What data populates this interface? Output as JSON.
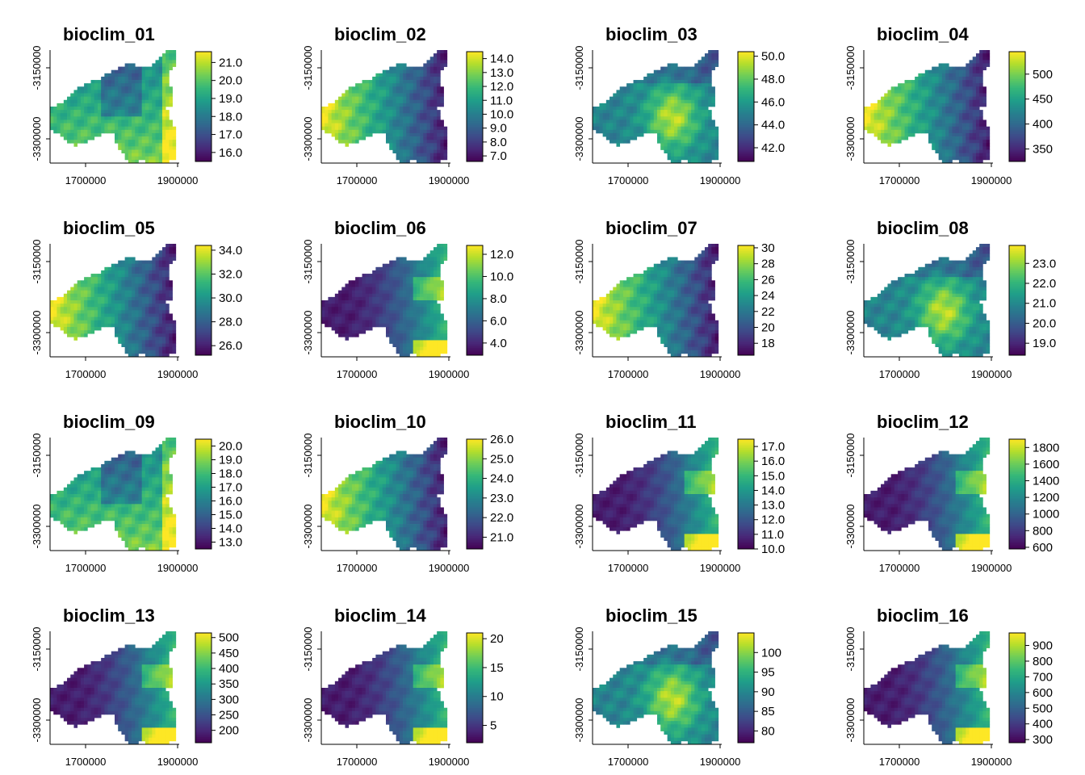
{
  "chart_data": [
    {
      "type": "heatmap",
      "title": "bioclim_01",
      "xticks": [
        "1700000",
        "1900000"
      ],
      "yticks": [
        "-3150000",
        "-3300000"
      ],
      "colorscale": "viridis",
      "legend_ticks": [
        "21.0",
        "20.0",
        "19.0",
        "18.0",
        "17.0",
        "16.0"
      ],
      "legend_range": [
        15.5,
        21.6
      ],
      "pattern": "south_high"
    },
    {
      "type": "heatmap",
      "title": "bioclim_02",
      "xticks": [
        "1700000",
        "1900000"
      ],
      "yticks": [
        "-3150000",
        "-3300000"
      ],
      "colorscale": "viridis",
      "legend_ticks": [
        "14.0",
        "13.0",
        "12.0",
        "11.0",
        "10.0",
        "9.0",
        "8.0",
        "7.0"
      ],
      "legend_range": [
        6.6,
        14.5
      ],
      "pattern": "west_high"
    },
    {
      "type": "heatmap",
      "title": "bioclim_03",
      "xticks": [
        "1700000",
        "1900000"
      ],
      "yticks": [
        "-3150000",
        "-3300000"
      ],
      "colorscale": "viridis",
      "legend_ticks": [
        "50.0",
        "48.0",
        "46.0",
        "44.0",
        "42.0"
      ],
      "legend_range": [
        40.8,
        50.4
      ],
      "pattern": "center_high"
    },
    {
      "type": "heatmap",
      "title": "bioclim_04",
      "xticks": [
        "1700000",
        "1900000"
      ],
      "yticks": [
        "-3150000",
        "-3300000"
      ],
      "colorscale": "viridis",
      "legend_ticks": [
        "500",
        "450",
        "400",
        "350"
      ],
      "legend_range": [
        325,
        545
      ],
      "pattern": "west_high"
    },
    {
      "type": "heatmap",
      "title": "bioclim_05",
      "xticks": [
        "1700000",
        "1900000"
      ],
      "yticks": [
        "-3150000",
        "-3300000"
      ],
      "colorscale": "viridis",
      "legend_ticks": [
        "34.0",
        "32.0",
        "30.0",
        "28.0",
        "26.0"
      ],
      "legend_range": [
        25.2,
        34.4
      ],
      "pattern": "west_high"
    },
    {
      "type": "heatmap",
      "title": "bioclim_06",
      "xticks": [
        "1700000",
        "1900000"
      ],
      "yticks": [
        "-3150000",
        "-3300000"
      ],
      "colorscale": "viridis",
      "legend_ticks": [
        "12.0",
        "10.0",
        "8.0",
        "6.0",
        "4.0"
      ],
      "legend_range": [
        2.9,
        12.8
      ],
      "pattern": "east_high"
    },
    {
      "type": "heatmap",
      "title": "bioclim_07",
      "xticks": [
        "1700000",
        "1900000"
      ],
      "yticks": [
        "-3150000",
        "-3300000"
      ],
      "colorscale": "viridis",
      "legend_ticks": [
        "30",
        "28",
        "26",
        "24",
        "22",
        "20",
        "18"
      ],
      "legend_range": [
        16.5,
        30.3
      ],
      "pattern": "west_high"
    },
    {
      "type": "heatmap",
      "title": "bioclim_08",
      "xticks": [
        "1700000",
        "1900000"
      ],
      "yticks": [
        "-3150000",
        "-3300000"
      ],
      "colorscale": "viridis",
      "legend_ticks": [
        "23.0",
        "22.0",
        "21.0",
        "20.0",
        "19.0"
      ],
      "legend_range": [
        18.4,
        23.9
      ],
      "pattern": "center_high"
    },
    {
      "type": "heatmap",
      "title": "bioclim_09",
      "xticks": [
        "1700000",
        "1900000"
      ],
      "yticks": [
        "-3150000",
        "-3300000"
      ],
      "colorscale": "viridis",
      "legend_ticks": [
        "20.0",
        "19.0",
        "18.0",
        "17.0",
        "16.0",
        "15.0",
        "14.0",
        "13.0"
      ],
      "legend_range": [
        12.5,
        20.5
      ],
      "pattern": "south_high"
    },
    {
      "type": "heatmap",
      "title": "bioclim_10",
      "xticks": [
        "1700000",
        "1900000"
      ],
      "yticks": [
        "-3150000",
        "-3300000"
      ],
      "colorscale": "viridis",
      "legend_ticks": [
        "26.0",
        "25.0",
        "24.0",
        "23.0",
        "22.0",
        "21.0"
      ],
      "legend_range": [
        20.4,
        26.0
      ],
      "pattern": "west_high"
    },
    {
      "type": "heatmap",
      "title": "bioclim_11",
      "xticks": [
        "1700000",
        "1900000"
      ],
      "yticks": [
        "-3150000",
        "-3300000"
      ],
      "colorscale": "viridis",
      "legend_ticks": [
        "17.0",
        "16.0",
        "15.0",
        "14.0",
        "13.0",
        "12.0",
        "11.0",
        "10.0"
      ],
      "legend_range": [
        10.0,
        17.5
      ],
      "pattern": "east_high"
    },
    {
      "type": "heatmap",
      "title": "bioclim_12",
      "xticks": [
        "1700000",
        "1900000"
      ],
      "yticks": [
        "-3150000",
        "-3300000"
      ],
      "colorscale": "viridis",
      "legend_ticks": [
        "1800",
        "1600",
        "1400",
        "1200",
        "1000",
        "800",
        "600"
      ],
      "legend_range": [
        580,
        1900
      ],
      "pattern": "east_high"
    },
    {
      "type": "heatmap",
      "title": "bioclim_13",
      "xticks": [
        "1700000",
        "1900000"
      ],
      "yticks": [
        "-3150000",
        "-3300000"
      ],
      "colorscale": "viridis",
      "legend_ticks": [
        "500",
        "450",
        "400",
        "350",
        "300",
        "250",
        "200"
      ],
      "legend_range": [
        160,
        515
      ],
      "pattern": "east_high"
    },
    {
      "type": "heatmap",
      "title": "bioclim_14",
      "xticks": [
        "1700000",
        "1900000"
      ],
      "yticks": [
        "-3150000",
        "-3300000"
      ],
      "colorscale": "viridis",
      "legend_ticks": [
        "20",
        "15",
        "10",
        "5"
      ],
      "legend_range": [
        2,
        21
      ],
      "pattern": "east_high"
    },
    {
      "type": "heatmap",
      "title": "bioclim_15",
      "xticks": [
        "1700000",
        "1900000"
      ],
      "yticks": [
        "-3150000",
        "-3300000"
      ],
      "colorscale": "viridis",
      "legend_ticks": [
        "100",
        "95",
        "90",
        "85",
        "80"
      ],
      "legend_range": [
        77,
        105
      ],
      "pattern": "center_high"
    },
    {
      "type": "heatmap",
      "title": "bioclim_16",
      "xticks": [
        "1700000",
        "1900000"
      ],
      "yticks": [
        "-3150000",
        "-3300000"
      ],
      "colorscale": "viridis",
      "legend_ticks": [
        "900",
        "800",
        "700",
        "600",
        "500",
        "400",
        "300"
      ],
      "legend_range": [
        280,
        980
      ],
      "pattern": "east_high"
    }
  ]
}
